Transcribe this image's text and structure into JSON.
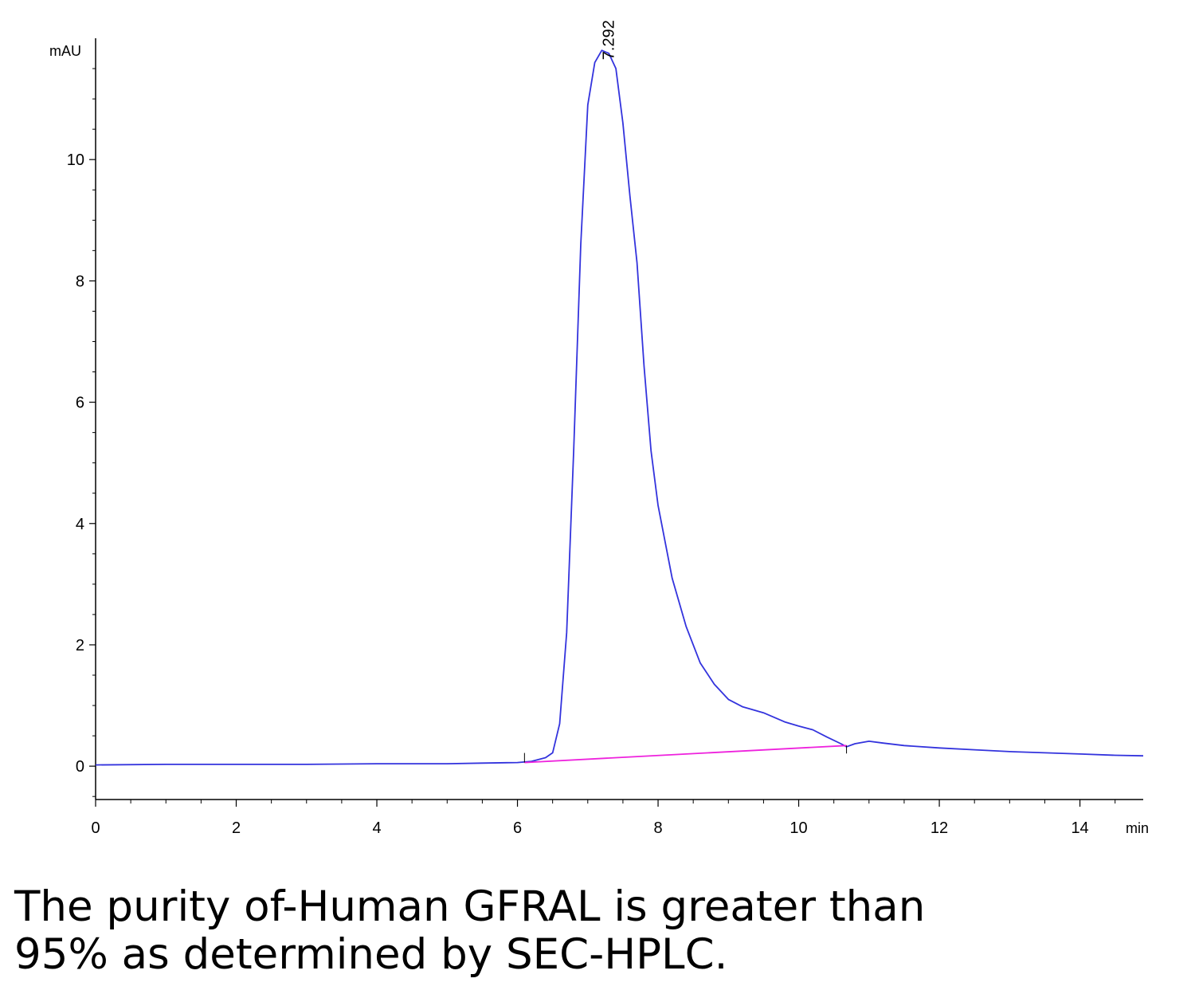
{
  "chart_data": {
    "type": "line",
    "title": "",
    "xlabel": "min",
    "ylabel": "mAU",
    "xlim": [
      0,
      14.9
    ],
    "ylim": [
      -0.55,
      12
    ],
    "x_ticks": [
      0,
      2,
      4,
      6,
      8,
      10,
      12,
      14
    ],
    "y_ticks": [
      0,
      2,
      4,
      6,
      8,
      10
    ],
    "x_tick_labels": [
      "0",
      "2",
      "4",
      "6",
      "8",
      "10",
      "12",
      "14"
    ],
    "y_tick_labels": [
      "0",
      "2",
      "4",
      "6",
      "8",
      "10"
    ],
    "grid": false,
    "series": [
      {
        "color": "#3333dd",
        "x": [
          0,
          1,
          2,
          3,
          4,
          5,
          5.5,
          6,
          6.2,
          6.4,
          6.5,
          6.6,
          6.7,
          6.8,
          6.9,
          7.0,
          7.1,
          7.2,
          7.3,
          7.4,
          7.5,
          7.6,
          7.7,
          7.8,
          7.9,
          8.0,
          8.2,
          8.4,
          8.6,
          8.8,
          9.0,
          9.2,
          9.5,
          9.8,
          10.0,
          10.2,
          10.4,
          10.6,
          10.68,
          10.8,
          11.0,
          11.2,
          11.5,
          12,
          12.5,
          13,
          13.5,
          14,
          14.5,
          14.9
        ],
        "y": [
          0.02,
          0.03,
          0.03,
          0.03,
          0.04,
          0.04,
          0.05,
          0.06,
          0.08,
          0.14,
          0.22,
          0.7,
          2.2,
          5.2,
          8.6,
          10.9,
          11.6,
          11.8,
          11.75,
          11.5,
          10.6,
          9.4,
          8.3,
          6.6,
          5.2,
          4.3,
          3.1,
          2.3,
          1.7,
          1.35,
          1.1,
          0.98,
          0.88,
          0.73,
          0.66,
          0.6,
          0.48,
          0.37,
          0.32,
          0.37,
          0.41,
          0.38,
          0.34,
          0.3,
          0.27,
          0.24,
          0.22,
          0.2,
          0.18,
          0.17
        ]
      },
      {
        "color": "#ee22dd",
        "x": [
          6.1,
          10.68
        ],
        "y": [
          0.06,
          0.34
        ]
      }
    ],
    "annotations": [
      {
        "text": "7.292",
        "x": 7.292,
        "y": 11.8
      }
    ]
  },
  "caption": {
    "line1": "The purity of-Human GFRAL is greater than",
    "line2": "95% as determined by SEC-HPLC."
  }
}
